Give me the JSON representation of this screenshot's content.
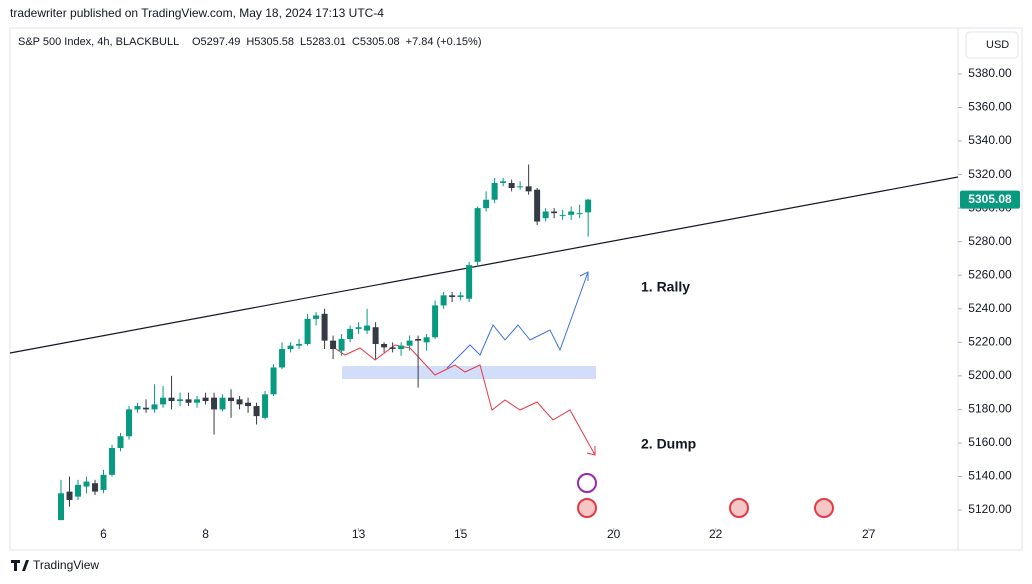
{
  "published": "tradewriter published on TradingView.com, May 18, 2024 17:13 UTC-4",
  "footer": "TradingView",
  "chart_data": {
    "type": "candlestick",
    "symbol": "S&P 500 Index, 4h, BLACKBULL",
    "ohlc_header": [
      "O5297.49",
      "H5305.58",
      "L5283.01",
      "C5305.08",
      "+7.84 (+0.15%)"
    ],
    "currency": "USD",
    "up_color": "#089981",
    "down_color": "#363a45",
    "open": [
      5114,
      5131,
      5128,
      5134,
      5136,
      5132,
      5141,
      5157,
      5164,
      5180,
      5181,
      5180,
      5183,
      5187,
      5185,
      5186,
      5184,
      5187,
      5187,
      5180,
      5187,
      5186,
      5184,
      5182,
      5175,
      5189,
      5205,
      5216,
      5218,
      5219,
      5234,
      5237,
      5221,
      5215,
      5222,
      5228,
      5227,
      5229,
      5219,
      5217,
      5216,
      5218,
      5222,
      5220,
      5223,
      5242,
      5248,
      5247,
      5246,
      5268,
      5300,
      5305,
      5315,
      5315,
      5313,
      5313,
      5311,
      5294,
      5298,
      5296,
      5296,
      5297,
      5297.49
    ],
    "high": [
      5138,
      5140,
      5138,
      5140,
      5138,
      5144,
      5159,
      5166,
      5182,
      5184,
      5186,
      5195,
      5194,
      5200,
      5190,
      5190,
      5188,
      5190,
      5190,
      5189,
      5192,
      5188,
      5187,
      5184,
      5191,
      5207,
      5220,
      5220,
      5222,
      5237,
      5238,
      5240,
      5224,
      5225,
      5230,
      5232,
      5240,
      5232,
      5220,
      5220,
      5220,
      5224,
      5224,
      5225,
      5245,
      5250,
      5250,
      5250,
      5268,
      5301,
      5310,
      5318,
      5318,
      5317,
      5316,
      5326,
      5312,
      5300,
      5300,
      5299,
      5301,
      5302,
      5305.58
    ],
    "low": [
      5114,
      5122,
      5126,
      5130,
      5129,
      5130,
      5140,
      5155,
      5162,
      5178,
      5178,
      5178,
      5181,
      5180,
      5182,
      5182,
      5181,
      5183,
      5165,
      5179,
      5175,
      5180,
      5178,
      5171,
      5174,
      5188,
      5204,
      5214,
      5216,
      5218,
      5230,
      5216,
      5210,
      5212,
      5220,
      5225,
      5225,
      5210,
      5214,
      5214,
      5212,
      5215,
      5193,
      5215,
      5222,
      5240,
      5244,
      5245,
      5244,
      5266,
      5298,
      5303,
      5313,
      5310,
      5311,
      5308,
      5290,
      5292,
      5294,
      5293,
      5293,
      5294,
      5283.01
    ],
    "close": [
      5130,
      5126,
      5135,
      5137,
      5131,
      5141,
      5157,
      5164,
      5180,
      5182,
      5180,
      5183,
      5187,
      5185,
      5186,
      5184,
      5186,
      5185,
      5180,
      5187,
      5185,
      5183,
      5182,
      5176,
      5189,
      5205,
      5216,
      5218,
      5219,
      5234,
      5236,
      5221,
      5216,
      5222,
      5228,
      5229,
      5230,
      5219,
      5217,
      5216,
      5218,
      5221,
      5221,
      5223,
      5242,
      5248,
      5247,
      5248,
      5266,
      5300,
      5305,
      5315,
      5316,
      5312,
      5313,
      5310,
      5292,
      5298,
      5297,
      5296,
      5298,
      5297,
      5305.08
    ],
    "xlim": [
      -6,
      105.5
    ],
    "xticks": [
      {
        "value": 5,
        "label": "6"
      },
      {
        "value": 17,
        "label": "8"
      },
      {
        "value": 35,
        "label": "13"
      },
      {
        "value": 47,
        "label": "15"
      },
      {
        "value": 65,
        "label": "20"
      },
      {
        "value": 77,
        "label": "22"
      },
      {
        "value": 95,
        "label": "27"
      }
    ],
    "ylim": [
      5109.3,
      5406.2
    ],
    "yticks": [
      {
        "value": 5120,
        "label": "5120.00"
      },
      {
        "value": 5140,
        "label": "5140.00"
      },
      {
        "value": 5160,
        "label": "5160.00"
      },
      {
        "value": 5180,
        "label": "5180.00"
      },
      {
        "value": 5200,
        "label": "5200.00"
      },
      {
        "value": 5220,
        "label": "5220.00"
      },
      {
        "value": 5240,
        "label": "5240.00"
      },
      {
        "value": 5260,
        "label": "5260.00"
      },
      {
        "value": 5280,
        "label": "5280.00"
      },
      {
        "value": 5300,
        "label": "5300.00"
      },
      {
        "value": 5320,
        "label": "5320.00"
      },
      {
        "value": 5340,
        "label": "5340.00"
      },
      {
        "value": 5360,
        "label": "5360.00"
      },
      {
        "value": 5380,
        "label": "5380.00"
      }
    ],
    "last_price": {
      "value": 5305.08,
      "label": "5305.08"
    },
    "annotations": [
      "1. Rally",
      "2. Dump"
    ]
  }
}
